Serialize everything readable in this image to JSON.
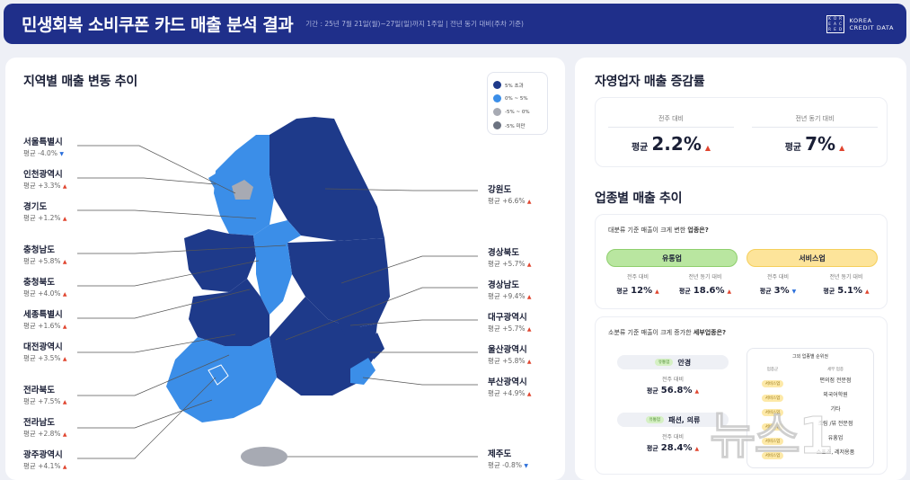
{
  "header": {
    "title": "민생회복 소비쿠폰 카드 매출 분석 결과",
    "period": "기간 : 25년 7월 21일(월)~27일(일)까지 1주일 | 전년 동기 대비(주차 기준)",
    "logo_line1": "KOREA",
    "logo_line2": "CREDIT DATA",
    "logo_box": [
      "K",
      "O",
      "R",
      "E",
      "A",
      "C",
      "R",
      "E",
      "D"
    ]
  },
  "map_section": {
    "title": "지역별 매출 변동 추이",
    "legend": [
      {
        "label": "5% 초과",
        "color": "#1e3a8a"
      },
      {
        "label": "0% ~ 5%",
        "color": "#3b8ee8"
      },
      {
        "label": "-5% ~ 0%",
        "color": "#a7aab3"
      },
      {
        "label": "-5% 미만",
        "color": "#6b7280"
      }
    ],
    "left_regions": [
      {
        "name": "서울특별시",
        "value": "평균 -4.0%",
        "dir": "down"
      },
      {
        "name": "인천광역시",
        "value": "평균 +3.3%",
        "dir": "up"
      },
      {
        "name": "경기도",
        "value": "평균 +1.2%",
        "dir": "up"
      },
      {
        "name": "충청남도",
        "value": "평균 +5.8%",
        "dir": "up"
      },
      {
        "name": "충청북도",
        "value": "평균 +4.0%",
        "dir": "up"
      },
      {
        "name": "세종특별시",
        "value": "평균 +1.6%",
        "dir": "up"
      },
      {
        "name": "대전광역시",
        "value": "평균 +3.5%",
        "dir": "up"
      },
      {
        "name": "전라북도",
        "value": "평균 +7.5%",
        "dir": "up"
      },
      {
        "name": "전라남도",
        "value": "평균 +2.8%",
        "dir": "up"
      },
      {
        "name": "광주광역시",
        "value": "평균 +4.1%",
        "dir": "up"
      }
    ],
    "right_regions": [
      {
        "name": "강원도",
        "value": "평균 +6.6%",
        "dir": "up"
      },
      {
        "name": "경상북도",
        "value": "평균 +5.7%",
        "dir": "up"
      },
      {
        "name": "경상남도",
        "value": "평균 +9.4%",
        "dir": "up"
      },
      {
        "name": "대구광역시",
        "value": "평균 +5.7%",
        "dir": "up"
      },
      {
        "name": "울산광역시",
        "value": "평균 +5.8%",
        "dir": "up"
      },
      {
        "name": "부산광역시",
        "value": "평균 +4.9%",
        "dir": "up"
      },
      {
        "name": "제주도",
        "value": "평균 -0.8%",
        "dir": "down"
      }
    ]
  },
  "self_employed": {
    "title": "자영업자 매출 증감률",
    "stats": [
      {
        "label": "전주 대비",
        "prefix": "평균",
        "value": "2.2%"
      },
      {
        "label": "전년 동기 대비",
        "prefix": "평균",
        "value": "7%"
      }
    ]
  },
  "industry": {
    "title": "업종별 매출 추이",
    "q1_prefix": "대분류 기준 매출이 크게 변한 ",
    "q1_bold": "업종은?",
    "categories": [
      {
        "name": "유통업",
        "color": "#b9e6a0",
        "labels": [
          "전주 대비",
          "전년 동기 대비"
        ],
        "prefix": "평균",
        "values": [
          "12%",
          "18.6%"
        ],
        "dirs": [
          "up",
          "up"
        ]
      },
      {
        "name": "서비스업",
        "color": "#fde49a",
        "labels": [
          "전주 대비",
          "전년 동기 대비"
        ],
        "prefix": "평균",
        "values": [
          "3%",
          "5.1%"
        ],
        "dirs": [
          "down",
          "up"
        ]
      }
    ],
    "q2_prefix": "소분류 기준 매출이 크게 증가한 ",
    "q2_bold": "세부업종은?",
    "sub_items": [
      {
        "tag": "유통업",
        "name": "안경",
        "label": "전주 대비",
        "prefix": "평균",
        "value": "56.8%"
      },
      {
        "tag": "유통업",
        "name": "패션, 의류",
        "label": "전주 대비",
        "prefix": "평균",
        "value": "28.4%"
      }
    ],
    "rank_table": {
      "title": "그외 업종별 순위권",
      "col1": "업종군",
      "col2": "세부 업종",
      "rows": [
        {
          "tag": "서비스업",
          "name": "편의점 전문점"
        },
        {
          "tag": "서비스업",
          "name": "외국어학원"
        },
        {
          "tag": "서비스업",
          "name": "기타"
        },
        {
          "tag": "서비스업",
          "name": "조림 /뷰 전문점"
        },
        {
          "tag": "서비스업",
          "name": "유흥업"
        },
        {
          "tag": "서비스업",
          "name": "스포츠, 레저용품"
        }
      ]
    }
  },
  "watermark": "뉴스1"
}
